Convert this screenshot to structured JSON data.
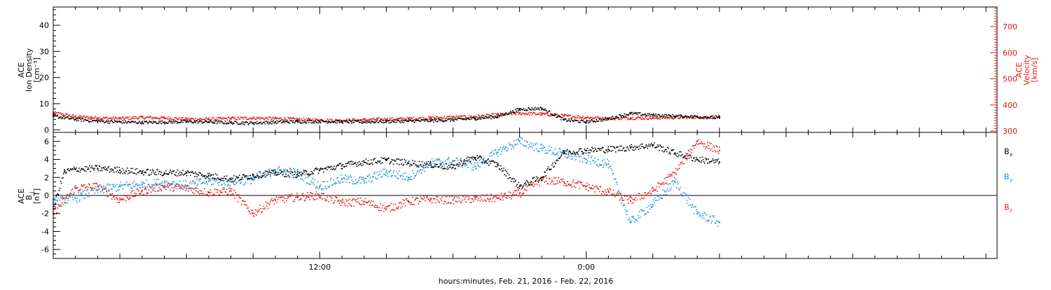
{
  "chart_data": [
    {
      "type": "scatter",
      "panel": "top",
      "ylabel_left": [
        "ACE",
        "Ion Density",
        "[cm⁻³]"
      ],
      "ylabel_right": [
        "ACE",
        "Velocity",
        "[km/s]"
      ],
      "y_left_ticks": [
        "0",
        "10",
        "20",
        "30",
        "40"
      ],
      "y_left_range": [
        -1,
        47
      ],
      "y_right_ticks": [
        "300",
        "400",
        "500",
        "600",
        "700"
      ],
      "y_right_range": [
        295,
        775
      ],
      "right_axis_color": "#e8160c",
      "series": [
        {
          "name": "",
          "axis": "left",
          "color": "#000000",
          "values": [
            [
              0.0,
              5.2
            ],
            [
              1.0,
              4.0
            ],
            [
              2.0,
              3.3
            ],
            [
              3.0,
              3.0
            ],
            [
              4.0,
              2.8
            ],
            [
              5.0,
              2.9
            ],
            [
              6.0,
              3.1
            ],
            [
              7.0,
              3.0
            ],
            [
              8.0,
              2.7
            ],
            [
              9.0,
              2.6
            ],
            [
              10.0,
              2.9
            ],
            [
              11.0,
              3.1
            ],
            [
              12.0,
              3.2
            ],
            [
              13.0,
              3.1
            ],
            [
              14.0,
              3.0
            ],
            [
              15.0,
              3.2
            ],
            [
              16.0,
              3.3
            ],
            [
              17.0,
              3.5
            ],
            [
              18.0,
              3.8
            ],
            [
              19.0,
              4.3
            ],
            [
              20.0,
              5.0
            ],
            [
              21.0,
              7.8
            ],
            [
              22.0,
              8.2
            ],
            [
              23.0,
              3.8
            ],
            [
              24.0,
              3.0
            ],
            [
              25.0,
              4.2
            ],
            [
              26.0,
              6.2
            ],
            [
              27.0,
              5.6
            ],
            [
              28.0,
              5.2
            ],
            [
              29.0,
              5.0
            ],
            [
              30.0,
              4.5
            ]
          ]
        },
        {
          "name": "",
          "axis": "right",
          "color": "#e8160c",
          "values": [
            [
              0.0,
              370
            ],
            [
              1.0,
              355
            ],
            [
              2.0,
              350
            ],
            [
              3.0,
              348
            ],
            [
              4.0,
              352
            ],
            [
              5.0,
              350
            ],
            [
              6.0,
              346
            ],
            [
              7.0,
              345
            ],
            [
              8.0,
              348
            ],
            [
              9.0,
              350
            ],
            [
              10.0,
              348
            ],
            [
              11.0,
              345
            ],
            [
              12.0,
              342
            ],
            [
              13.0,
              340
            ],
            [
              14.0,
              343
            ],
            [
              15.0,
              345
            ],
            [
              16.0,
              347
            ],
            [
              17.0,
              350
            ],
            [
              18.0,
              353
            ],
            [
              19.0,
              355
            ],
            [
              20.0,
              362
            ],
            [
              21.0,
              368
            ],
            [
              22.0,
              365
            ],
            [
              23.0,
              358
            ],
            [
              24.0,
              352
            ],
            [
              25.0,
              348
            ],
            [
              26.0,
              350
            ],
            [
              27.0,
              350
            ],
            [
              28.0,
              352
            ],
            [
              29.0,
              353
            ],
            [
              30.0,
              355
            ]
          ]
        }
      ]
    },
    {
      "type": "scatter",
      "panel": "bottom",
      "ylabel": [
        "ACE",
        "B",
        "[nT]"
      ],
      "ylabel_sub": "i",
      "y_ticks": [
        "-6",
        "-4",
        "-2",
        "0",
        "2",
        "4",
        "6"
      ],
      "y_range": [
        -7,
        7
      ],
      "zero_line": true,
      "series": [
        {
          "name": "B",
          "sub": "x",
          "color": "#000000",
          "values": [
            [
              0.0,
              -1.5
            ],
            [
              0.5,
              2.6
            ],
            [
              1.0,
              2.9
            ],
            [
              2.0,
              3.0
            ],
            [
              3.0,
              2.8
            ],
            [
              4.0,
              2.6
            ],
            [
              5.0,
              2.5
            ],
            [
              6.0,
              2.5
            ],
            [
              7.0,
              2.2
            ],
            [
              8.0,
              1.8
            ],
            [
              9.0,
              2.2
            ],
            [
              10.0,
              2.5
            ],
            [
              11.0,
              2.3
            ],
            [
              12.0,
              2.8
            ],
            [
              13.0,
              3.3
            ],
            [
              14.0,
              3.7
            ],
            [
              15.0,
              3.9
            ],
            [
              16.0,
              3.6
            ],
            [
              17.0,
              3.4
            ],
            [
              18.0,
              3.1
            ],
            [
              18.5,
              3.8
            ],
            [
              19.0,
              4.2
            ],
            [
              20.0,
              3.4
            ],
            [
              21.0,
              1.0
            ],
            [
              22.0,
              2.0
            ],
            [
              23.0,
              4.8
            ],
            [
              24.0,
              5.0
            ],
            [
              25.0,
              5.1
            ],
            [
              26.0,
              5.3
            ],
            [
              27.0,
              5.6
            ],
            [
              28.0,
              4.7
            ],
            [
              29.0,
              4.0
            ],
            [
              30.0,
              3.7
            ]
          ]
        },
        {
          "name": "B",
          "sub": "y",
          "color": "#1e8ee0",
          "values": [
            [
              0.0,
              -0.8
            ],
            [
              1.0,
              -0.3
            ],
            [
              2.0,
              0.6
            ],
            [
              3.0,
              1.0
            ],
            [
              4.0,
              1.2
            ],
            [
              5.0,
              1.4
            ],
            [
              6.0,
              1.1
            ],
            [
              7.0,
              1.6
            ],
            [
              8.0,
              1.5
            ],
            [
              9.0,
              1.8
            ],
            [
              10.0,
              2.8
            ],
            [
              11.0,
              2.5
            ],
            [
              12.0,
              1.0
            ],
            [
              13.0,
              1.8
            ],
            [
              14.0,
              1.6
            ],
            [
              15.0,
              2.6
            ],
            [
              16.0,
              2.0
            ],
            [
              17.0,
              3.6
            ],
            [
              18.0,
              3.8
            ],
            [
              19.0,
              3.2
            ],
            [
              20.0,
              4.8
            ],
            [
              21.0,
              6.0
            ],
            [
              22.0,
              5.2
            ],
            [
              23.0,
              4.6
            ],
            [
              24.0,
              4.0
            ],
            [
              25.0,
              3.5
            ],
            [
              26.0,
              -3.0
            ],
            [
              27.0,
              -1.0
            ],
            [
              28.0,
              1.5
            ],
            [
              29.0,
              -2.0
            ],
            [
              30.0,
              -3.0
            ]
          ]
        },
        {
          "name": "B",
          "sub": "z",
          "color": "#e8160c",
          "values": [
            [
              0.0,
              -2.0
            ],
            [
              1.0,
              0.8
            ],
            [
              2.0,
              1.0
            ],
            [
              3.0,
              -0.5
            ],
            [
              4.0,
              0.5
            ],
            [
              5.0,
              1.0
            ],
            [
              6.0,
              0.8
            ],
            [
              7.0,
              0.3
            ],
            [
              8.0,
              0.5
            ],
            [
              9.0,
              -2.0
            ],
            [
              10.0,
              -0.5
            ],
            [
              11.0,
              -0.2
            ],
            [
              12.0,
              0.0
            ],
            [
              13.0,
              -0.8
            ],
            [
              14.0,
              -0.7
            ],
            [
              15.0,
              -1.5
            ],
            [
              16.0,
              -0.7
            ],
            [
              17.0,
              -0.4
            ],
            [
              18.0,
              -0.5
            ],
            [
              19.0,
              -0.4
            ],
            [
              20.0,
              -0.3
            ],
            [
              21.0,
              0.2
            ],
            [
              22.0,
              1.7
            ],
            [
              23.0,
              1.5
            ],
            [
              24.0,
              1.0
            ],
            [
              25.0,
              0.4
            ],
            [
              26.0,
              -0.6
            ],
            [
              27.0,
              0.5
            ],
            [
              28.0,
              2.5
            ],
            [
              29.0,
              6.0
            ],
            [
              30.0,
              5.0
            ]
          ]
        }
      ]
    }
  ],
  "x_axis": {
    "tick_labels": [
      "12:00",
      "0:00"
    ],
    "tick_hours": [
      12,
      24
    ],
    "range_hours": [
      0.0,
      42.5
    ],
    "data_end_hours": 30.5,
    "title": "hours:minutes, Feb. 21, 2016 – Feb. 22, 2016"
  },
  "colors": {
    "black": "#000000",
    "red": "#e8160c",
    "blue": "#1e8ee0",
    "frame": "#000000"
  }
}
